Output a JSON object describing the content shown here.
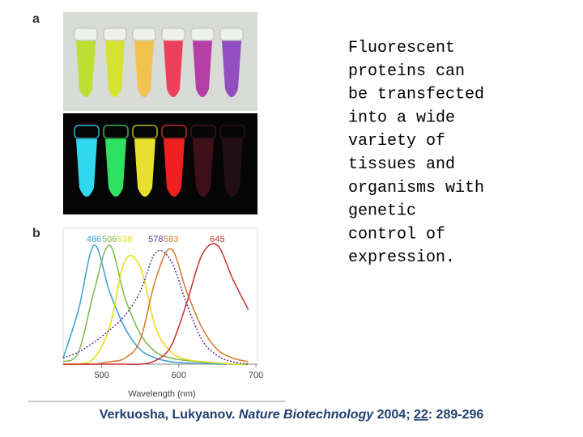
{
  "panel_labels": [
    "a",
    "b"
  ],
  "text_lines": [
    "Fluorescent",
    "proteins can",
    "be transfected",
    "into a wide",
    "variety of",
    "tissues and",
    "organisms with",
    "genetic",
    "control of",
    "expression."
  ],
  "citation": {
    "authors": "Verkuosha, Lukyanov.",
    "journal": "Nature Biotechnology",
    "year": "2004;",
    "volume": "22",
    "pages": ": 289-296"
  },
  "chart_data": {
    "type": "line",
    "xlabel": "Wavelength (nm)",
    "x": [
      450,
      470,
      490,
      510,
      530,
      550,
      570,
      590,
      610,
      630,
      650,
      670,
      690
    ],
    "xlim": [
      450,
      702
    ],
    "xticks": [
      500,
      600,
      700
    ],
    "ylim": [
      0,
      1
    ],
    "series": [
      {
        "name": "486",
        "color": "#3a9fd8",
        "values": [
          0.05,
          0.45,
          0.98,
          0.6,
          0.3,
          0.12,
          0.05,
          0.02,
          0.01,
          0.01,
          0,
          0,
          0
        ]
      },
      {
        "name": "506",
        "color": "#7ab648",
        "values": [
          0.02,
          0.1,
          0.6,
          0.98,
          0.55,
          0.25,
          0.1,
          0.05,
          0.03,
          0.02,
          0.01,
          0,
          0
        ]
      },
      {
        "name": "538",
        "color": "#e6dc10",
        "values": [
          0,
          0,
          0.05,
          0.3,
          0.85,
          0.8,
          0.3,
          0.1,
          0.04,
          0.02,
          0.01,
          0,
          0
        ]
      },
      {
        "name": "578",
        "color": "#5a3a9a",
        "dashed": true,
        "values": [
          0.05,
          0.1,
          0.18,
          0.28,
          0.4,
          0.6,
          0.92,
          0.85,
          0.5,
          0.2,
          0.07,
          0.02,
          0
        ]
      },
      {
        "name": "583",
        "color": "#d9782b",
        "values": [
          0,
          0,
          0,
          0.02,
          0.05,
          0.2,
          0.7,
          0.95,
          0.6,
          0.3,
          0.12,
          0.05,
          0.02
        ]
      },
      {
        "name": "645",
        "color": "#c83030",
        "values": [
          0,
          0,
          0,
          0,
          0,
          0,
          0.03,
          0.15,
          0.5,
          0.9,
          0.98,
          0.7,
          0.45
        ]
      }
    ]
  }
}
